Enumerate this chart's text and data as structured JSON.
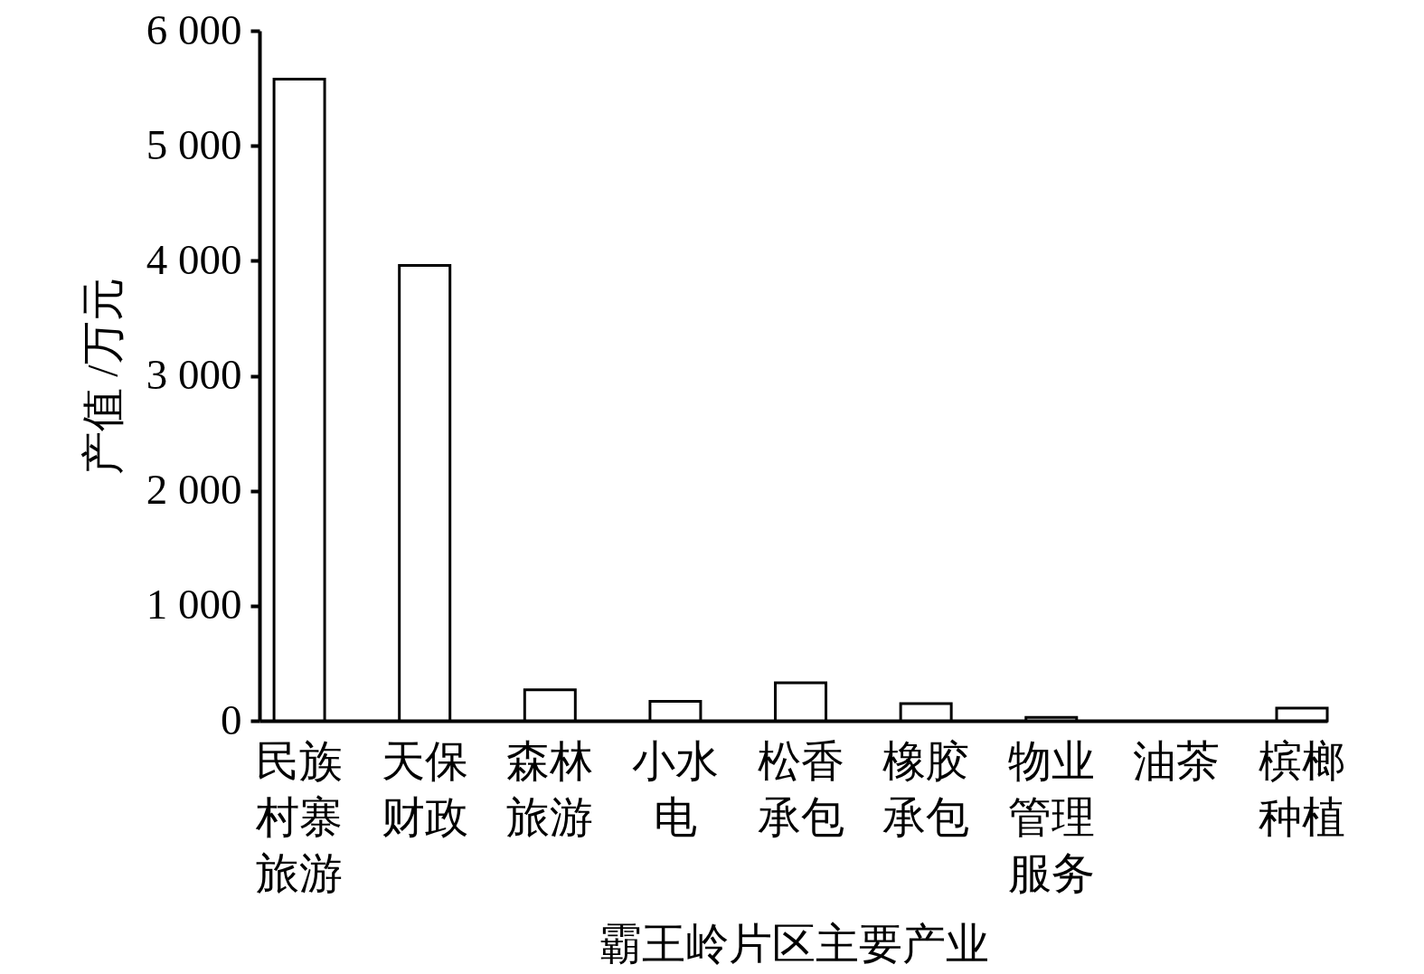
{
  "chart_data": {
    "type": "bar",
    "xlabel": "霸王岭片区主要产业",
    "ylabel": "产值 /万元",
    "categories": [
      "民族村寨旅游",
      "天保财政",
      "森林旅游",
      "小水电",
      "松香承包",
      "橡胶承包",
      "物业管理服务",
      "油茶",
      "槟榔种植"
    ],
    "values": [
      5580,
      3960,
      270,
      170,
      330,
      150,
      30,
      null,
      110
    ],
    "color": "#ffffff",
    "ylim": [
      0,
      6000
    ],
    "yticks": [
      0,
      {
        "value": 1000,
        "label": "1 000"
      },
      {
        "value": 2000,
        "label": "2 000"
      },
      {
        "value": 3000,
        "label": "3 000"
      },
      {
        "value": 4000,
        "label": "4 000"
      },
      {
        "value": 5000,
        "label": "5 000"
      },
      {
        "value": 6000,
        "label": "6 000"
      }
    ]
  }
}
